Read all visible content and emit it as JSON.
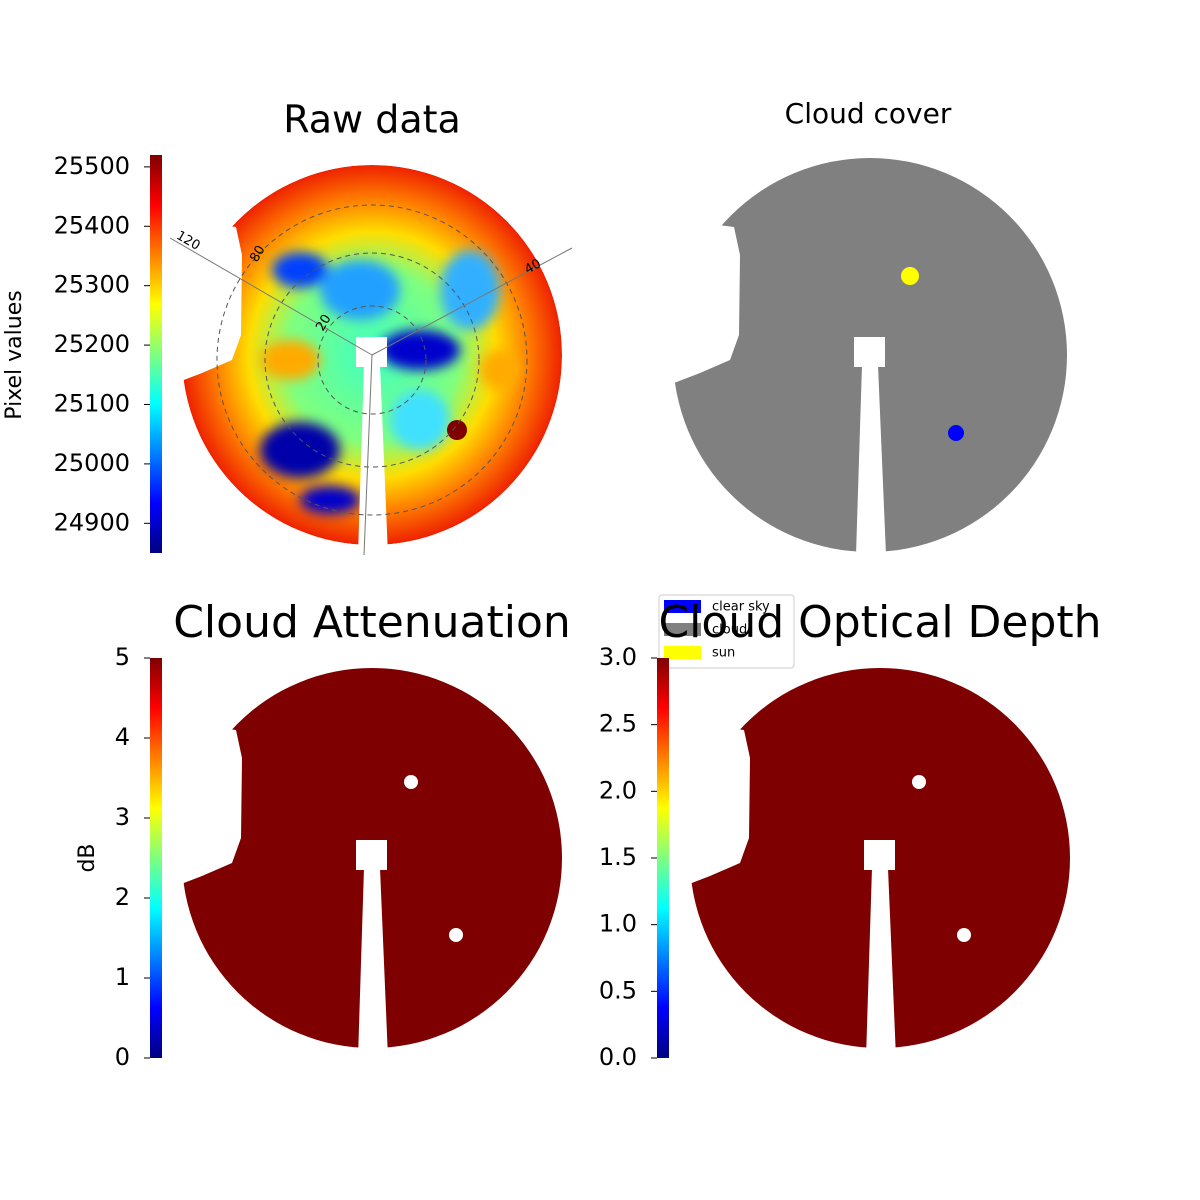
{
  "chart_data": [
    {
      "type": "image",
      "title": "Raw data",
      "ylabel": "Pixel values",
      "colormap": "jet",
      "ylim": [
        24850,
        25520
      ],
      "yticks": [
        24900,
        25000,
        25100,
        25200,
        25300,
        25400,
        25500
      ],
      "annotations": [
        "120",
        "80",
        "20",
        "40"
      ]
    },
    {
      "type": "image",
      "title": "Cloud cover",
      "color": "#808080",
      "series": [
        {
          "name": "clear sky",
          "color": "#0000ff"
        },
        {
          "name": "cloud",
          "color": "#808080"
        },
        {
          "name": "sun",
          "color": "#ffff00"
        }
      ]
    },
    {
      "type": "image",
      "title": "Cloud Attenuation",
      "ylabel": "dB",
      "colormap": "jet",
      "color": "#7f0000",
      "ylim": [
        0,
        5
      ],
      "yticks": [
        0,
        1,
        2,
        3,
        4,
        5
      ]
    },
    {
      "type": "image",
      "title": "Cloud Optical Depth",
      "colormap": "jet",
      "color": "#7f0000",
      "ylim": [
        0,
        3
      ],
      "yticks": [
        {
          "value": 0,
          "label": "0.0"
        },
        0.5,
        {
          "value": 1,
          "label": "1.0"
        },
        1.5,
        {
          "value": 2,
          "label": "2.0"
        },
        2.5,
        {
          "value": 3,
          "label": "3.0"
        }
      ]
    }
  ]
}
